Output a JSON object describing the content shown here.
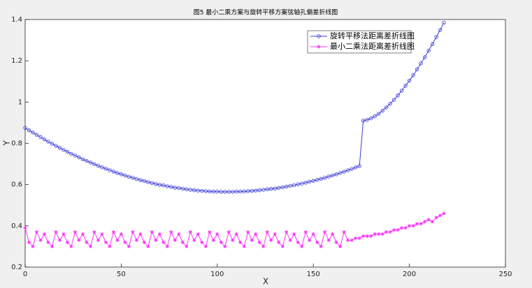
{
  "chart_data": {
    "type": "line",
    "title": "图5  最小二乘方案与旋转平移方案弦轴孔偏差折线图",
    "x_label": "X",
    "y_label": "Y",
    "x": [
      0,
      2,
      4,
      6,
      8,
      10,
      12,
      14,
      16,
      18,
      20,
      22,
      24,
      26,
      28,
      30,
      32,
      34,
      36,
      38,
      40,
      42,
      44,
      46,
      48,
      50,
      52,
      54,
      56,
      58,
      60,
      62,
      64,
      66,
      68,
      70,
      72,
      74,
      76,
      78,
      80,
      82,
      84,
      86,
      88,
      90,
      92,
      94,
      96,
      98,
      100,
      102,
      104,
      106,
      108,
      110,
      112,
      114,
      116,
      118,
      120,
      122,
      124,
      126,
      128,
      130,
      132,
      134,
      136,
      138,
      140,
      142,
      144,
      146,
      148,
      150,
      152,
      154,
      156,
      158,
      160,
      162,
      164,
      166,
      168,
      170,
      172,
      174,
      176,
      178,
      180,
      182,
      184,
      186,
      188,
      190,
      192,
      194,
      196,
      198,
      200,
      202,
      204,
      206,
      208,
      210,
      212,
      214,
      216,
      218
    ],
    "series": [
      {
        "name": "旋转平移法距离差折线图",
        "color": "#3b3bd6",
        "marker": "circle",
        "values": [
          0.875,
          0.863,
          0.852,
          0.841,
          0.83,
          0.819,
          0.808,
          0.798,
          0.788,
          0.778,
          0.768,
          0.759,
          0.749,
          0.741,
          0.732,
          0.723,
          0.715,
          0.707,
          0.699,
          0.691,
          0.684,
          0.677,
          0.67,
          0.663,
          0.656,
          0.65,
          0.644,
          0.638,
          0.633,
          0.627,
          0.622,
          0.617,
          0.612,
          0.608,
          0.603,
          0.599,
          0.596,
          0.592,
          0.589,
          0.585,
          0.583,
          0.58,
          0.577,
          0.575,
          0.573,
          0.571,
          0.57,
          0.568,
          0.567,
          0.566,
          0.566,
          0.565,
          0.565,
          0.565,
          0.565,
          0.566,
          0.566,
          0.567,
          0.568,
          0.569,
          0.571,
          0.573,
          0.575,
          0.577,
          0.579,
          0.581,
          0.584,
          0.587,
          0.59,
          0.594,
          0.597,
          0.601,
          0.605,
          0.609,
          0.614,
          0.618,
          0.623,
          0.628,
          0.633,
          0.639,
          0.644,
          0.65,
          0.656,
          0.663,
          0.669,
          0.676,
          0.683,
          0.69,
          0.91,
          0.914,
          0.921,
          0.931,
          0.943,
          0.958,
          0.974,
          0.992,
          1.011,
          1.032,
          1.055,
          1.079,
          1.104,
          1.13,
          1.158,
          1.187,
          1.217,
          1.249,
          1.281,
          1.315,
          1.349,
          1.385
        ]
      },
      {
        "name": "最小二乘法距离差折线图",
        "color": "#ff33ff",
        "marker": "star",
        "values": [
          0.39,
          0.32,
          0.3,
          0.37,
          0.33,
          0.36,
          0.32,
          0.3,
          0.37,
          0.33,
          0.36,
          0.32,
          0.3,
          0.37,
          0.33,
          0.36,
          0.32,
          0.3,
          0.37,
          0.33,
          0.36,
          0.32,
          0.3,
          0.37,
          0.33,
          0.36,
          0.32,
          0.3,
          0.37,
          0.33,
          0.36,
          0.32,
          0.3,
          0.37,
          0.33,
          0.36,
          0.32,
          0.3,
          0.37,
          0.33,
          0.36,
          0.32,
          0.3,
          0.37,
          0.33,
          0.36,
          0.32,
          0.3,
          0.37,
          0.33,
          0.36,
          0.32,
          0.3,
          0.37,
          0.33,
          0.36,
          0.32,
          0.3,
          0.37,
          0.33,
          0.36,
          0.32,
          0.3,
          0.37,
          0.33,
          0.36,
          0.32,
          0.3,
          0.37,
          0.33,
          0.36,
          0.32,
          0.3,
          0.37,
          0.33,
          0.36,
          0.32,
          0.3,
          0.37,
          0.33,
          0.36,
          0.32,
          0.3,
          0.37,
          0.33,
          0.33,
          0.34,
          0.34,
          0.35,
          0.35,
          0.35,
          0.36,
          0.36,
          0.36,
          0.37,
          0.37,
          0.38,
          0.38,
          0.39,
          0.39,
          0.4,
          0.4,
          0.41,
          0.41,
          0.42,
          0.43,
          0.42,
          0.44,
          0.45,
          0.46
        ]
      }
    ],
    "xlim": [
      0,
      250
    ],
    "xticks": [
      0,
      50,
      100,
      150,
      200,
      250
    ],
    "ylim": [
      0.2,
      1.4
    ],
    "yticks": [
      0.2,
      0.4,
      0.6,
      0.8,
      1,
      1.2,
      1.4
    ],
    "grid": false,
    "legend": "upper right"
  }
}
